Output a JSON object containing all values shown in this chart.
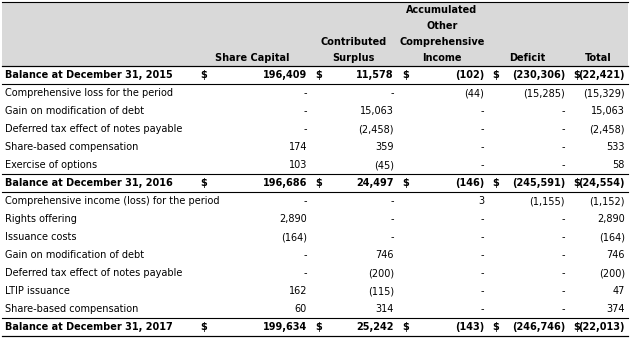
{
  "header_lines": [
    [
      3,
      "Accumulated"
    ],
    [
      3,
      "Other"
    ],
    [
      2,
      "Contributed",
      3,
      "Comprehensive"
    ],
    [
      1,
      "Share Capital",
      2,
      "Surplus",
      3,
      "Income",
      4,
      "Deficit",
      5,
      "Total"
    ]
  ],
  "rows": [
    {
      "label": "Balance at December 31, 2015",
      "vals": [
        "$",
        "196,409",
        "$",
        "11,578",
        "$",
        "(102)",
        "$",
        "(230,306)",
        "$",
        "(22,421)"
      ],
      "bold": true,
      "top_border": true,
      "bottom_border": true
    },
    {
      "label": "Comprehensive loss for the period",
      "vals": [
        "-",
        "-",
        "(44)",
        "(15,285)",
        "(15,329)"
      ],
      "bold": false,
      "top_border": false,
      "bottom_border": false
    },
    {
      "label": "Gain on modification of debt",
      "vals": [
        "-",
        "15,063",
        "-",
        "-",
        "15,063"
      ],
      "bold": false,
      "top_border": false,
      "bottom_border": false
    },
    {
      "label": "Deferred tax effect of notes payable",
      "vals": [
        "-",
        "(2,458)",
        "-",
        "-",
        "(2,458)"
      ],
      "bold": false,
      "top_border": false,
      "bottom_border": false
    },
    {
      "label": "Share-based compensation",
      "vals": [
        "174",
        "359",
        "-",
        "-",
        "533"
      ],
      "bold": false,
      "top_border": false,
      "bottom_border": false
    },
    {
      "label": "Exercise of options",
      "vals": [
        "103",
        "(45)",
        "-",
        "-",
        "58"
      ],
      "bold": false,
      "top_border": false,
      "bottom_border": false
    },
    {
      "label": "Balance at December 31, 2016",
      "vals": [
        "$",
        "196,686",
        "$",
        "24,497",
        "$",
        "(146)",
        "$",
        "(245,591)",
        "$",
        "(24,554)"
      ],
      "bold": true,
      "top_border": true,
      "bottom_border": true
    },
    {
      "label": "Comprehensive income (loss) for the period",
      "vals": [
        "-",
        "-",
        "3",
        "(1,155)",
        "(1,152)"
      ],
      "bold": false,
      "top_border": false,
      "bottom_border": false
    },
    {
      "label": "Rights offering",
      "vals": [
        "2,890",
        "-",
        "-",
        "-",
        "2,890"
      ],
      "bold": false,
      "top_border": false,
      "bottom_border": false
    },
    {
      "label": "Issuance costs",
      "vals": [
        "(164)",
        "-",
        "-",
        "-",
        "(164)"
      ],
      "bold": false,
      "top_border": false,
      "bottom_border": false
    },
    {
      "label": "Gain on modification of debt",
      "vals": [
        "-",
        "746",
        "-",
        "-",
        "746"
      ],
      "bold": false,
      "top_border": false,
      "bottom_border": false
    },
    {
      "label": "Deferred tax effect of notes payable",
      "vals": [
        "-",
        "(200)",
        "-",
        "-",
        "(200)"
      ],
      "bold": false,
      "top_border": false,
      "bottom_border": false
    },
    {
      "label": "LTIP issuance",
      "vals": [
        "162",
        "(115)",
        "-",
        "-",
        "47"
      ],
      "bold": false,
      "top_border": false,
      "bottom_border": false
    },
    {
      "label": "Share-based compensation",
      "vals": [
        "60",
        "314",
        "-",
        "-",
        "374"
      ],
      "bold": false,
      "top_border": false,
      "bottom_border": false
    },
    {
      "label": "Balance at December 31, 2017",
      "vals": [
        "$",
        "199,634",
        "$",
        "25,242",
        "$",
        "(143)",
        "$",
        "(246,746)",
        "$",
        "(22,013)"
      ],
      "bold": true,
      "top_border": true,
      "bottom_border": true
    }
  ],
  "header_bg": "#d9d9d9",
  "body_bg": "#ffffff",
  "border_color": "#000000",
  "font_size": 7.0,
  "header_font_size": 7.0,
  "fig_width": 6.3,
  "fig_height": 3.38,
  "dpi": 100
}
